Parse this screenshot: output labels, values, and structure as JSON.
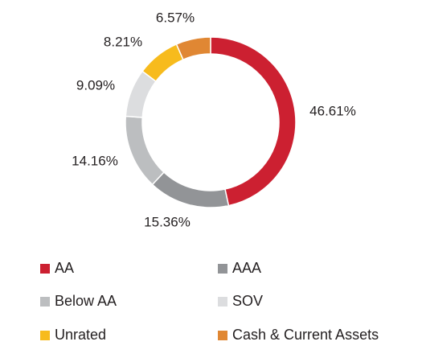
{
  "chart_data": {
    "type": "pie",
    "donut": true,
    "legend_position": "bottom",
    "slices": [
      {
        "label": "AA",
        "value": 46.61,
        "value_label": "46.61%",
        "color": "#cc2031"
      },
      {
        "label": "AAA",
        "value": 15.36,
        "value_label": "15.36%",
        "color": "#929497"
      },
      {
        "label": "Below AA",
        "value": 14.16,
        "value_label": "14.16%",
        "color": "#bcbec0"
      },
      {
        "label": "SOV",
        "value": 9.09,
        "value_label": "9.09%",
        "color": "#dcdddf"
      },
      {
        "label": "Unrated",
        "value": 8.21,
        "value_label": "8.21%",
        "color": "#f7bb1d"
      },
      {
        "label": "Cash & Current Assets",
        "value": 6.57,
        "value_label": "6.57%",
        "color": "#e08733"
      }
    ]
  }
}
